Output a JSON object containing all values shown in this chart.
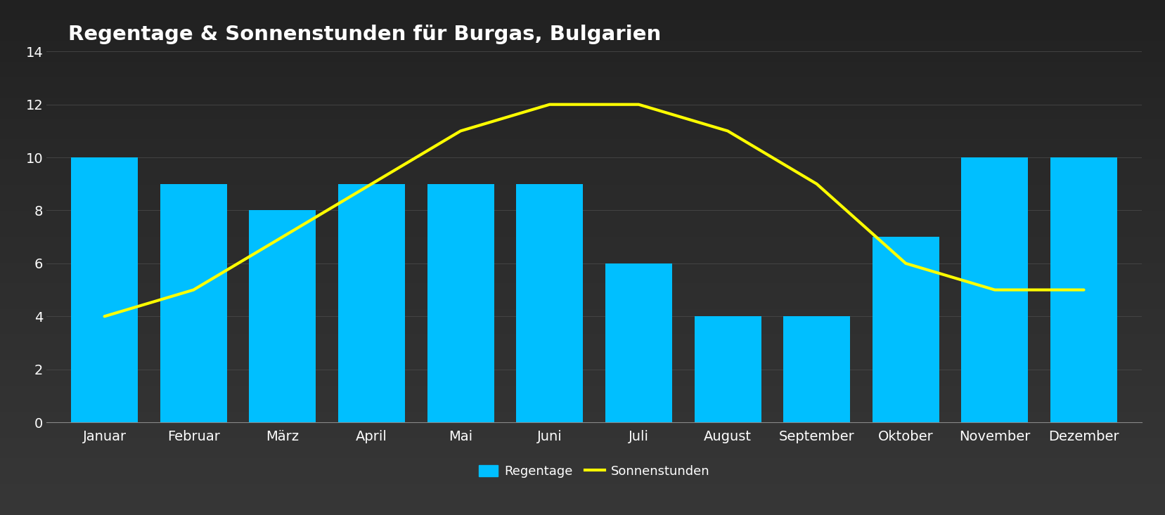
{
  "title": "Regentage & Sonnenstunden für Burgas, Bulgarien",
  "months": [
    "Januar",
    "Februar",
    "März",
    "April",
    "Mai",
    "Juni",
    "Juli",
    "August",
    "September",
    "Oktober",
    "November",
    "Dezember"
  ],
  "regentage": [
    10,
    9,
    8,
    9,
    9,
    9,
    6,
    4,
    4,
    7,
    10,
    10
  ],
  "sonnenstunden": [
    4,
    5,
    7,
    9,
    11,
    12,
    12,
    11,
    9,
    6,
    5,
    5
  ],
  "bar_color": "#00BFFF",
  "line_color": "#FFFF00",
  "bg_top": "#1e1e1e",
  "bg_mid": "#3a3a3a",
  "bg_bottom": "#2a2a2a",
  "text_color": "#ffffff",
  "grid_color": "#4a4a4a",
  "ylim": [
    0,
    14
  ],
  "yticks": [
    0,
    2,
    4,
    6,
    8,
    10,
    12,
    14
  ],
  "title_fontsize": 21,
  "tick_fontsize": 14,
  "legend_fontsize": 13,
  "line_width": 3,
  "bar_width": 0.75,
  "legend_label_bar": "Regentage",
  "legend_label_line": "Sonnenstunden"
}
